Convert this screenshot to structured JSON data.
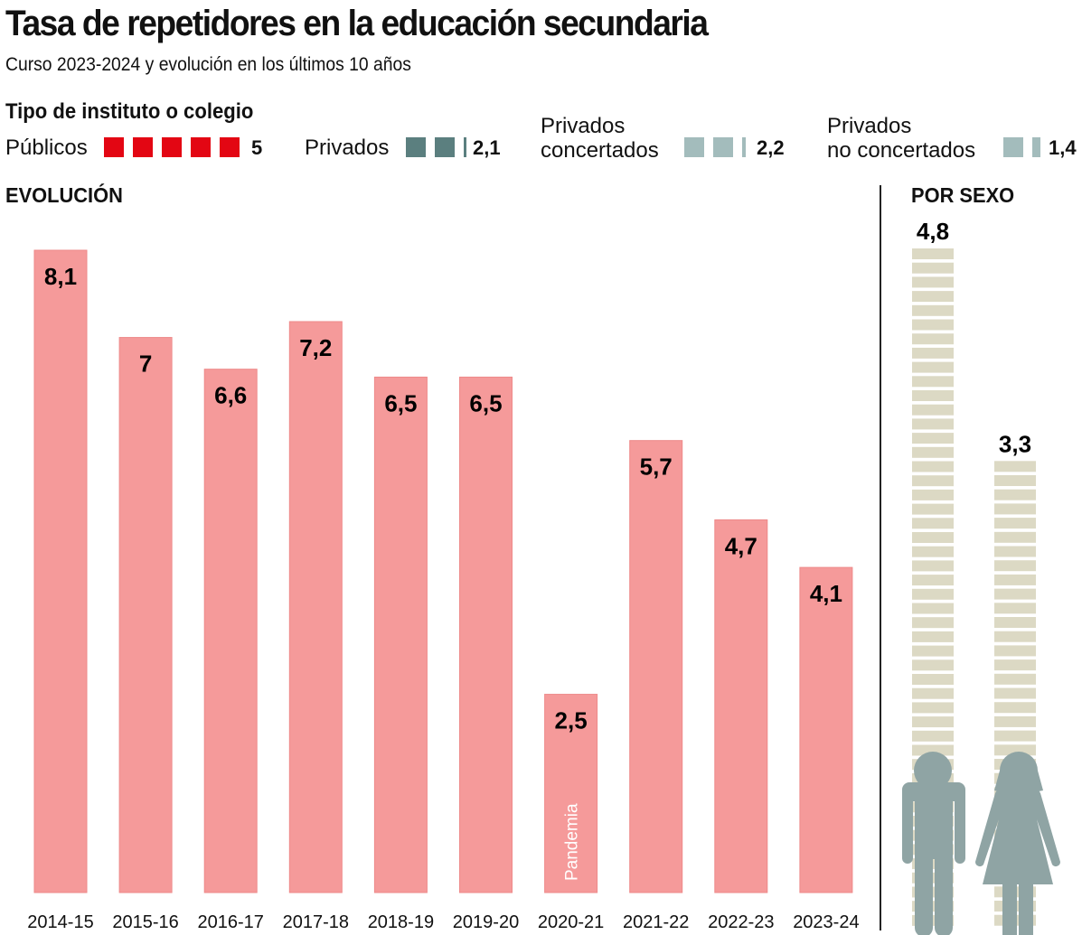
{
  "header": {
    "title": "Tasa de repetidores en la educación secundaria",
    "subtitle": "Curso 2023-2024 y evolución en los últimos 10 años"
  },
  "legend": {
    "title": "Tipo de instituto o colegio",
    "items": [
      {
        "label": "Públicos",
        "label_lines": [
          "Públicos"
        ],
        "value": 5,
        "value_label": "5",
        "color": "#e30613"
      },
      {
        "label": "Privados",
        "label_lines": [
          "Privados"
        ],
        "value": 2.1,
        "value_label": "2,1",
        "color": "#5b7f7f"
      },
      {
        "label": "Privados concertados",
        "label_lines": [
          "Privados",
          "concertados"
        ],
        "value": 2.2,
        "value_label": "2,2",
        "color": "#a3bcbc"
      },
      {
        "label": "Privados no concertados",
        "label_lines": [
          "Privados",
          "no concertados"
        ],
        "value": 1.4,
        "value_label": "1,4",
        "color": "#a3bcbc"
      }
    ]
  },
  "sections": {
    "evolution": "EVOLUCIÓN",
    "by_sex": "POR SEXO"
  },
  "colors": {
    "bar": "#f59a9a",
    "bar_edge": "#ee8a8a",
    "stripe": "#dcd9c4",
    "figure": "#8fa4a4"
  },
  "chart_data": [
    {
      "type": "bar",
      "title": "EVOLUCIÓN",
      "xlabel": "",
      "ylabel": "",
      "categories": [
        "2014-15",
        "2015-16",
        "2016-17",
        "2017-18",
        "2018-19",
        "2019-20",
        "2020-21",
        "2021-22",
        "2022-23",
        "2023-24"
      ],
      "values": [
        8.1,
        7,
        6.6,
        7.2,
        6.5,
        6.5,
        2.5,
        5.7,
        4.7,
        4.1
      ],
      "value_labels": [
        "8,1",
        "7",
        "6,6",
        "7,2",
        "6,5",
        "6,5",
        "2,5",
        "5,7",
        "4,7",
        "4,1"
      ],
      "annotations": [
        {
          "category": "2020-21",
          "text": "Pandemia"
        }
      ],
      "ylim": [
        0,
        8.1
      ],
      "grid": false
    },
    {
      "type": "bar",
      "title": "POR SEXO",
      "categories": [
        "Hombres",
        "Mujeres"
      ],
      "icons": [
        "male-figure",
        "female-figure"
      ],
      "values": [
        4.8,
        3.3
      ],
      "value_labels": [
        "4,8",
        "3,3"
      ],
      "ylim": [
        0,
        4.8
      ],
      "grid": false
    }
  ]
}
